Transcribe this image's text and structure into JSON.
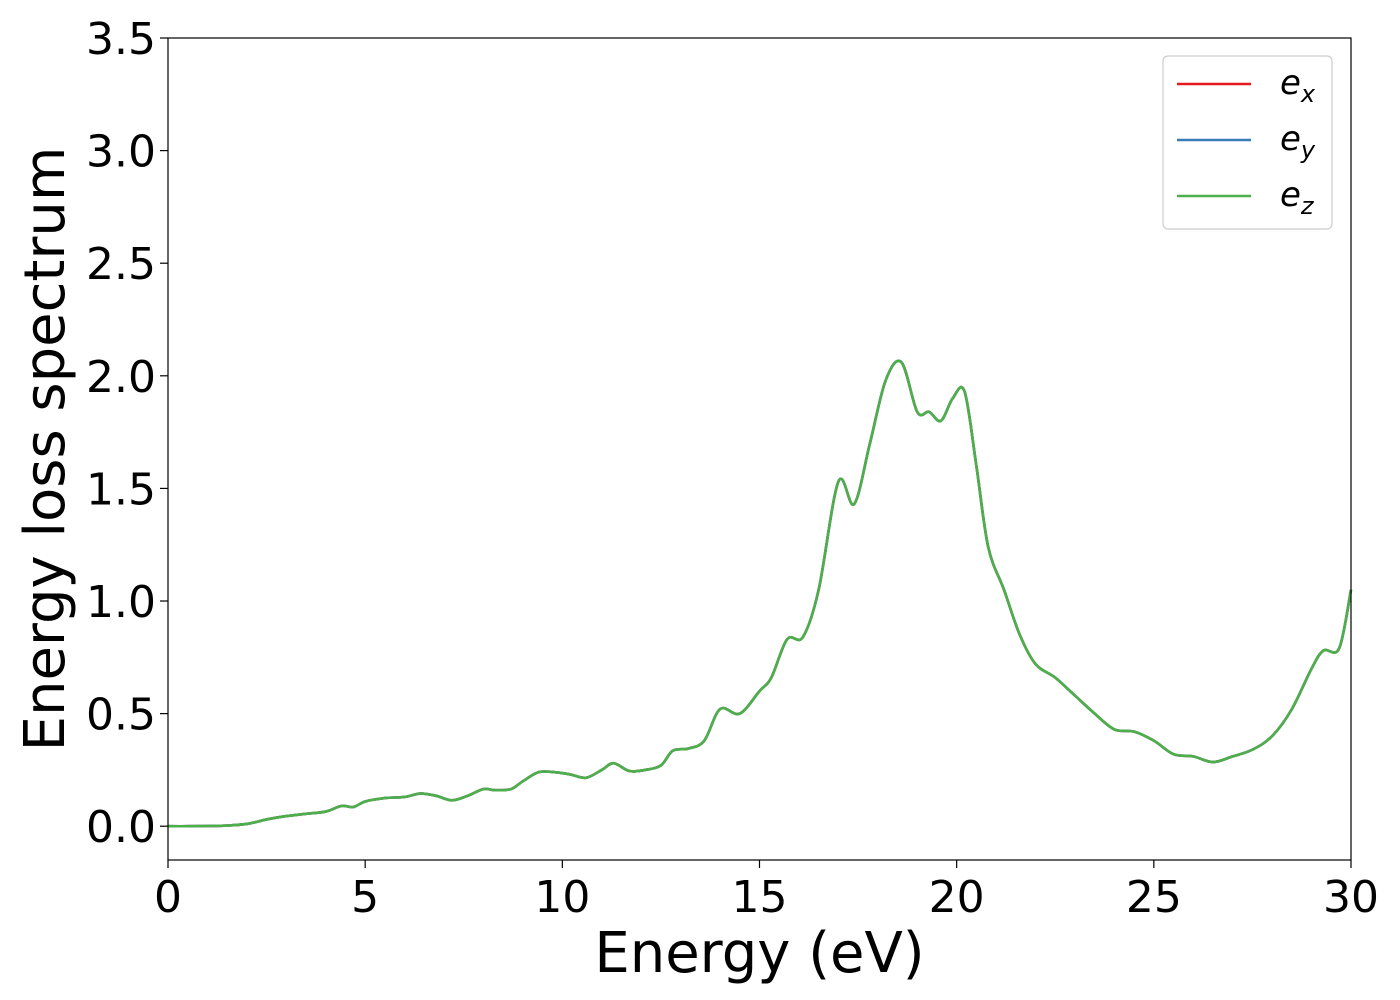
{
  "chart_data": {
    "type": "line",
    "title": "",
    "xlabel": "Energy (eV)",
    "ylabel": "Energy loss spectrum",
    "xlim": [
      0,
      30
    ],
    "ylim": [
      -0.15,
      3.5
    ],
    "xticks": [
      "0",
      "5",
      "10",
      "15",
      "20",
      "25",
      "30"
    ],
    "yticks": [
      "0.0",
      "0.5",
      "1.0",
      "1.5",
      "2.0",
      "2.5",
      "3.0",
      "3.5"
    ],
    "grid": false,
    "legend_position": "top-right",
    "x": [
      0,
      0.5,
      1,
      1.5,
      2,
      2.5,
      3,
      3.5,
      4,
      4.4,
      4.7,
      5,
      5.5,
      6,
      6.4,
      6.8,
      7.2,
      7.6,
      8,
      8.3,
      8.7,
      9,
      9.4,
      9.8,
      10.2,
      10.6,
      11,
      11.3,
      11.7,
      12.1,
      12.5,
      12.8,
      13.2,
      13.6,
      14,
      14.5,
      15,
      15.3,
      15.7,
      16.1,
      16.5,
      17,
      17.4,
      17.8,
      18.2,
      18.6,
      19,
      19.3,
      19.6,
      19.9,
      20.2,
      20.5,
      20.8,
      21.2,
      21.6,
      22,
      22.5,
      23,
      23.5,
      24,
      24.5,
      25,
      25.5,
      26,
      26.5,
      27,
      27.5,
      28,
      28.5,
      29,
      29.3,
      29.7,
      30
    ],
    "series": [
      {
        "name": "e_x",
        "values": [
          0,
          0,
          0.001,
          0.003,
          0.01,
          0.03,
          0.045,
          0.055,
          0.065,
          0.09,
          0.085,
          0.11,
          0.125,
          0.13,
          0.145,
          0.135,
          0.115,
          0.135,
          0.165,
          0.16,
          0.165,
          0.2,
          0.24,
          0.24,
          0.23,
          0.215,
          0.25,
          0.28,
          0.245,
          0.25,
          0.27,
          0.335,
          0.345,
          0.38,
          0.52,
          0.5,
          0.6,
          0.66,
          0.83,
          0.84,
          1.05,
          1.53,
          1.43,
          1.7,
          1.98,
          2.06,
          1.84,
          1.84,
          1.8,
          1.9,
          1.93,
          1.6,
          1.24,
          1.05,
          0.85,
          0.72,
          0.66,
          0.58,
          0.5,
          0.43,
          0.42,
          0.38,
          0.32,
          0.31,
          0.285,
          0.31,
          0.34,
          0.4,
          0.52,
          0.7,
          0.78,
          0.79,
          1.05
        ]
      },
      {
        "name": "e_y",
        "values": [
          0,
          0,
          0.001,
          0.003,
          0.01,
          0.03,
          0.045,
          0.055,
          0.065,
          0.09,
          0.085,
          0.11,
          0.125,
          0.13,
          0.145,
          0.135,
          0.115,
          0.135,
          0.165,
          0.16,
          0.165,
          0.2,
          0.24,
          0.24,
          0.23,
          0.215,
          0.25,
          0.28,
          0.245,
          0.25,
          0.27,
          0.335,
          0.345,
          0.38,
          0.52,
          0.5,
          0.6,
          0.66,
          0.83,
          0.84,
          1.05,
          1.53,
          1.43,
          1.7,
          1.98,
          2.06,
          1.84,
          1.84,
          1.8,
          1.9,
          1.93,
          1.6,
          1.24,
          1.05,
          0.85,
          0.72,
          0.66,
          0.58,
          0.5,
          0.43,
          0.42,
          0.38,
          0.32,
          0.31,
          0.285,
          0.31,
          0.34,
          0.4,
          0.52,
          0.7,
          0.78,
          0.79,
          1.05
        ]
      },
      {
        "name": "e_z",
        "values": [
          0,
          0,
          0.001,
          0.003,
          0.01,
          0.03,
          0.045,
          0.055,
          0.065,
          0.09,
          0.085,
          0.11,
          0.125,
          0.13,
          0.145,
          0.135,
          0.115,
          0.135,
          0.165,
          0.16,
          0.165,
          0.2,
          0.24,
          0.24,
          0.23,
          0.215,
          0.25,
          0.28,
          0.245,
          0.25,
          0.27,
          0.335,
          0.345,
          0.38,
          0.52,
          0.5,
          0.6,
          0.66,
          0.83,
          0.84,
          1.05,
          1.53,
          1.43,
          1.7,
          1.98,
          2.06,
          1.84,
          1.84,
          1.8,
          1.9,
          1.93,
          1.6,
          1.24,
          1.05,
          0.85,
          0.72,
          0.66,
          0.58,
          0.5,
          0.43,
          0.42,
          0.38,
          0.32,
          0.31,
          0.285,
          0.31,
          0.34,
          0.4,
          0.52,
          0.7,
          0.78,
          0.79,
          1.05
        ]
      }
    ],
    "legend": [
      {
        "base": "e",
        "sub": "x",
        "color": "#e41a1c"
      },
      {
        "base": "e",
        "sub": "y",
        "color": "#377eb8"
      },
      {
        "base": "e",
        "sub": "z",
        "color": "#4daf4a"
      }
    ]
  }
}
